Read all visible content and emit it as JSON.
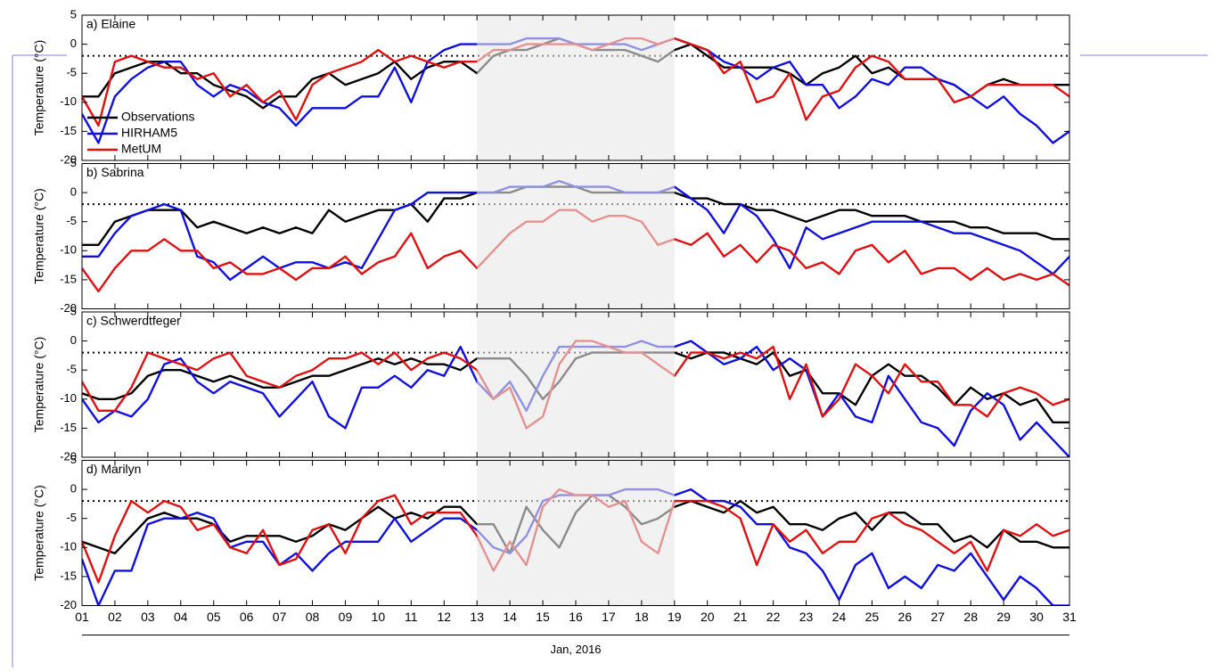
{
  "chart_data": [
    {
      "type": "line",
      "title": "a) Elaine",
      "ylabel": "Temperature (°C)",
      "legend": "lower left",
      "ylim": [
        -20,
        5
      ],
      "yticks": [
        -20,
        -15,
        -10,
        -5,
        0,
        5
      ],
      "xlim": [
        1,
        31
      ],
      "reference_line": -2,
      "highlight_range": [
        13,
        19
      ],
      "x": [
        1,
        1.5,
        2,
        2.5,
        3,
        3.5,
        4,
        4.5,
        5,
        5.5,
        6,
        6.5,
        7,
        7.5,
        8,
        8.5,
        9,
        9.5,
        10,
        10.5,
        11,
        11.5,
        12,
        12.5,
        13,
        13.5,
        14,
        14.5,
        15,
        15.5,
        16,
        16.5,
        17,
        17.5,
        18,
        18.5,
        19,
        19.5,
        20,
        20.5,
        21,
        21.5,
        22,
        22.5,
        23,
        23.5,
        24,
        24.5,
        25,
        25.5,
        26,
        26.5,
        27,
        27.5,
        28,
        28.5,
        29,
        29.5,
        30,
        30.5,
        31
      ],
      "series": [
        {
          "name": "Observations",
          "color": "#000000",
          "values": [
            -9,
            -9,
            -5,
            -4,
            -3,
            -3,
            -5,
            -5,
            -7,
            -8,
            -9,
            -11,
            -9,
            -9,
            -6,
            -5,
            -7,
            -6,
            -5,
            -3,
            -6,
            -4,
            -3,
            -3,
            -5,
            -2,
            -1,
            -1,
            0,
            1,
            0,
            -1,
            -1,
            -1,
            -2,
            -3,
            -1,
            0,
            -2,
            -4,
            -4,
            -4,
            -4,
            -5,
            -7,
            -5,
            -4,
            -2,
            -5,
            -4,
            -6,
            -6,
            -6,
            -7,
            -9,
            -7,
            -6,
            -7,
            -7,
            -7,
            -7
          ]
        },
        {
          "name": "HIRHAM5",
          "color": "#1010dd",
          "values": [
            -12,
            -17,
            -9,
            -6,
            -4,
            -3,
            -3,
            -7,
            -9,
            -7,
            -8,
            -10,
            -11,
            -14,
            -11,
            -11,
            -11,
            -9,
            -9,
            -4,
            -10,
            -3,
            -1,
            0,
            0,
            0,
            0,
            1,
            1,
            1,
            0,
            0,
            0,
            0,
            -1,
            0,
            1,
            0,
            -1,
            -3,
            -4,
            -6,
            -4,
            -3,
            -7,
            -7,
            -11,
            -9,
            -6,
            -7,
            -4,
            -4,
            -6,
            -7,
            -9,
            -11,
            -9,
            -12,
            -14,
            -17,
            -15
          ]
        },
        {
          "name": "MetUM",
          "color": "#e01010",
          "values": [
            -9,
            -14,
            -3,
            -2,
            -3,
            -4,
            -4,
            -6,
            -5,
            -9,
            -7,
            -10,
            -8,
            -13,
            -7,
            -5,
            -4,
            -3,
            -1,
            -3,
            -2,
            -3,
            -4,
            -3,
            -3,
            -1,
            -1,
            0,
            0,
            0,
            0,
            -1,
            0,
            1,
            1,
            0,
            1,
            0,
            -1,
            -5,
            -3,
            -10,
            -9,
            -5,
            -13,
            -9,
            -8,
            -4,
            -2,
            -3,
            -6,
            -6,
            -6,
            -10,
            -9,
            -7,
            -7,
            -7,
            -7,
            -7,
            -9
          ]
        }
      ]
    },
    {
      "type": "line",
      "title": "b) Sabrina",
      "ylabel": "Temperature (°C)",
      "ylim": [
        -20,
        5
      ],
      "yticks": [
        -20,
        -15,
        -10,
        -5,
        0,
        5
      ],
      "xlim": [
        1,
        31
      ],
      "reference_line": -2,
      "highlight_range": [
        13,
        19
      ],
      "x": [
        1,
        1.5,
        2,
        2.5,
        3,
        3.5,
        4,
        4.5,
        5,
        5.5,
        6,
        6.5,
        7,
        7.5,
        8,
        8.5,
        9,
        9.5,
        10,
        10.5,
        11,
        11.5,
        12,
        12.5,
        13,
        13.5,
        14,
        14.5,
        15,
        15.5,
        16,
        16.5,
        17,
        17.5,
        18,
        18.5,
        19,
        19.5,
        20,
        20.5,
        21,
        21.5,
        22,
        22.5,
        23,
        23.5,
        24,
        24.5,
        25,
        25.5,
        26,
        26.5,
        27,
        27.5,
        28,
        28.5,
        29,
        29.5,
        30,
        30.5,
        31
      ],
      "series": [
        {
          "name": "Observations",
          "color": "#000000",
          "values": [
            -9,
            -9,
            -5,
            -4,
            -3,
            -3,
            -3,
            -6,
            -5,
            -6,
            -7,
            -6,
            -7,
            -6,
            -7,
            -3,
            -5,
            -4,
            -3,
            -3,
            -2,
            -5,
            -1,
            -1,
            0,
            0,
            0,
            1,
            1,
            1,
            1,
            0,
            0,
            0,
            0,
            0,
            0,
            -1,
            -1,
            -2,
            -2,
            -3,
            -3,
            -4,
            -5,
            -4,
            -3,
            -3,
            -4,
            -4,
            -4,
            -5,
            -5,
            -5,
            -6,
            -6,
            -7,
            -7,
            -7,
            -8,
            -8
          ]
        },
        {
          "name": "HIRHAM5",
          "color": "#1010dd",
          "values": [
            -11,
            -11,
            -7,
            -4,
            -3,
            -2,
            -3,
            -11,
            -12,
            -15,
            -13,
            -11,
            -13,
            -12,
            -12,
            -13,
            -12,
            -13,
            -8,
            -3,
            -2,
            0,
            0,
            0,
            0,
            0,
            1,
            1,
            1,
            2,
            1,
            1,
            1,
            0,
            0,
            0,
            1,
            -1,
            -3,
            -7,
            -2,
            -4,
            -8,
            -13,
            -6,
            -8,
            -7,
            -6,
            -5,
            -5,
            -5,
            -5,
            -6,
            -7,
            -7,
            -8,
            -9,
            -10,
            -12,
            -14,
            -11
          ]
        },
        {
          "name": "MetUM",
          "color": "#e01010",
          "values": [
            -13,
            -17,
            -13,
            -10,
            -10,
            -8,
            -10,
            -10,
            -13,
            -12,
            -14,
            -14,
            -13,
            -15,
            -13,
            -13,
            -11,
            -14,
            -12,
            -11,
            -7,
            -13,
            -11,
            -10,
            -13,
            -10,
            -7,
            -5,
            -5,
            -3,
            -3,
            -5,
            -4,
            -4,
            -5,
            -9,
            -8,
            -9,
            -7,
            -11,
            -9,
            -12,
            -9,
            -10,
            -13,
            -12,
            -14,
            -10,
            -9,
            -12,
            -10,
            -14,
            -13,
            -13,
            -15,
            -13,
            -15,
            -14,
            -15,
            -14,
            -16
          ]
        }
      ]
    },
    {
      "type": "line",
      "title": "c) Schwerdtfeger",
      "ylabel": "Temperature (°C)",
      "ylim": [
        -20,
        5
      ],
      "yticks": [
        -20,
        -15,
        -10,
        -5,
        0,
        5
      ],
      "xlim": [
        1,
        31
      ],
      "reference_line": -2,
      "highlight_range": [
        13,
        19
      ],
      "x": [
        1,
        1.5,
        2,
        2.5,
        3,
        3.5,
        4,
        4.5,
        5,
        5.5,
        6,
        6.5,
        7,
        7.5,
        8,
        8.5,
        9,
        9.5,
        10,
        10.5,
        11,
        11.5,
        12,
        12.5,
        13,
        13.5,
        14,
        14.5,
        15,
        15.5,
        16,
        16.5,
        17,
        17.5,
        18,
        18.5,
        19,
        19.5,
        20,
        20.5,
        21,
        21.5,
        22,
        22.5,
        23,
        23.5,
        24,
        24.5,
        25,
        25.5,
        26,
        26.5,
        27,
        27.5,
        28,
        28.5,
        29,
        29.5,
        30,
        30.5,
        31
      ],
      "series": [
        {
          "name": "Observations",
          "color": "#000000",
          "values": [
            -9,
            -10,
            -10,
            -9,
            -6,
            -5,
            -5,
            -6,
            -7,
            -6,
            -7,
            -8,
            -8,
            -7,
            -6,
            -6,
            -5,
            -4,
            -3,
            -4,
            -3,
            -4,
            -4,
            -5,
            -3,
            -3,
            -3,
            -6,
            -10,
            -7,
            -3,
            -2,
            -2,
            -2,
            -2,
            -2,
            -2,
            -3,
            -2,
            -2,
            -3,
            -4,
            -2,
            -6,
            -5,
            -9,
            -9,
            -11,
            -6,
            -4,
            -6,
            -6,
            -8,
            -11,
            -8,
            -10,
            -9,
            -11,
            -10,
            -14,
            -14
          ]
        },
        {
          "name": "HIRHAM5",
          "color": "#1010dd",
          "values": [
            -10,
            -14,
            -12,
            -13,
            -10,
            -4,
            -3,
            -7,
            -9,
            -7,
            -8,
            -9,
            -13,
            -10,
            -7,
            -13,
            -15,
            -8,
            -8,
            -6,
            -8,
            -5,
            -6,
            -1,
            -7,
            -10,
            -7,
            -12,
            -6,
            -1,
            -1,
            -1,
            -1,
            -1,
            0,
            -1,
            -1,
            0,
            -2,
            -4,
            -3,
            -1,
            -5,
            -3,
            -5,
            -13,
            -9,
            -13,
            -14,
            -6,
            -10,
            -14,
            -15,
            -18,
            -12,
            -9,
            -11,
            -17,
            -14,
            -17,
            -20
          ]
        },
        {
          "name": "MetUM",
          "color": "#e01010",
          "values": [
            -7,
            -12,
            -12,
            -8,
            -2,
            -3,
            -4,
            -5,
            -3,
            -2,
            -6,
            -7,
            -8,
            -6,
            -5,
            -3,
            -3,
            -2,
            -4,
            -2,
            -5,
            -3,
            -2,
            -3,
            -5,
            -10,
            -8,
            -15,
            -13,
            -4,
            0,
            0,
            -1,
            -2,
            -2,
            -4,
            -6,
            -2,
            -2,
            -3,
            -2,
            -3,
            -1,
            -10,
            -4,
            -13,
            -10,
            -4,
            -6,
            -9,
            -4,
            -7,
            -7,
            -11,
            -11,
            -13,
            -9,
            -8,
            -9,
            -11,
            -10
          ]
        }
      ]
    },
    {
      "type": "line",
      "title": "d) Marilyn",
      "ylabel": "Temperature (°C)",
      "xlabel": "Jan, 2016",
      "ylim": [
        -20,
        5
      ],
      "yticks": [
        -20,
        -15,
        -10,
        -5,
        0,
        5
      ],
      "xlim": [
        1,
        31
      ],
      "reference_line": -2,
      "highlight_range": [
        13,
        19
      ],
      "xticks": [
        {
          "value": 1,
          "label": "01"
        },
        {
          "value": 2,
          "label": "02"
        },
        {
          "value": 3,
          "label": "03"
        },
        {
          "value": 4,
          "label": "04"
        },
        {
          "value": 5,
          "label": "05"
        },
        {
          "value": 6,
          "label": "06"
        },
        {
          "value": 7,
          "label": "07"
        },
        {
          "value": 8,
          "label": "08"
        },
        {
          "value": 9,
          "label": "09"
        },
        10,
        11,
        12,
        13,
        14,
        15,
        16,
        17,
        18,
        19,
        20,
        21,
        22,
        23,
        24,
        25,
        26,
        27,
        28,
        29,
        30,
        31
      ],
      "x": [
        1,
        1.5,
        2,
        2.5,
        3,
        3.5,
        4,
        4.5,
        5,
        5.5,
        6,
        6.5,
        7,
        7.5,
        8,
        8.5,
        9,
        9.5,
        10,
        10.5,
        11,
        11.5,
        12,
        12.5,
        13,
        13.5,
        14,
        14.5,
        15,
        15.5,
        16,
        16.5,
        17,
        17.5,
        18,
        18.5,
        19,
        19.5,
        20,
        20.5,
        21,
        21.5,
        22,
        22.5,
        23,
        23.5,
        24,
        24.5,
        25,
        25.5,
        26,
        26.5,
        27,
        27.5,
        28,
        28.5,
        29,
        29.5,
        30,
        30.5,
        31
      ],
      "series": [
        {
          "name": "Observations",
          "color": "#000000",
          "values": [
            -9,
            -10,
            -11,
            -8,
            -5,
            -4,
            -5,
            -5,
            -6,
            -9,
            -8,
            -8,
            -8,
            -9,
            -8,
            -6,
            -7,
            -5,
            -3,
            -5,
            -4,
            -5,
            -3,
            -3,
            -6,
            -6,
            -11,
            -3,
            -7,
            -10,
            -4,
            -1,
            -1,
            -3,
            -6,
            -5,
            -3,
            -2,
            -3,
            -4,
            -2,
            -4,
            -3,
            -6,
            -6,
            -7,
            -5,
            -4,
            -7,
            -4,
            -4,
            -6,
            -6,
            -9,
            -8,
            -10,
            -7,
            -9,
            -9,
            -10,
            -10
          ]
        },
        {
          "name": "HIRHAM5",
          "color": "#1010dd",
          "values": [
            -12,
            -20,
            -14,
            -14,
            -6,
            -5,
            -5,
            -4,
            -5,
            -10,
            -9,
            -9,
            -13,
            -11,
            -14,
            -11,
            -9,
            -9,
            -9,
            -5,
            -9,
            -7,
            -5,
            -5,
            -7,
            -10,
            -11,
            -8,
            -2,
            -1,
            -1,
            -1,
            -1,
            0,
            0,
            0,
            -1,
            0,
            -2,
            -2,
            -3,
            -6,
            -6,
            -10,
            -11,
            -14,
            -19,
            -13,
            -11,
            -17,
            -15,
            -17,
            -13,
            -14,
            -11,
            -15,
            -19,
            -15,
            -17,
            -20,
            -20
          ]
        },
        {
          "name": "MetUM",
          "color": "#e01010",
          "values": [
            -9,
            -16,
            -8,
            -2,
            -4,
            -2,
            -3,
            -7,
            -6,
            -10,
            -11,
            -7,
            -13,
            -12,
            -7,
            -6,
            -11,
            -5,
            -2,
            -1,
            -6,
            -4,
            -4,
            -4,
            -8,
            -14,
            -9,
            -13,
            -3,
            0,
            -1,
            -1,
            -3,
            -2,
            -9,
            -11,
            -2,
            -2,
            -2,
            -3,
            -5,
            -13,
            -6,
            -9,
            -7,
            -11,
            -9,
            -9,
            -5,
            -4,
            -6,
            -7,
            -9,
            -11,
            -9,
            -14,
            -7,
            -8,
            -6,
            -8,
            -7
          ]
        }
      ]
    }
  ]
}
